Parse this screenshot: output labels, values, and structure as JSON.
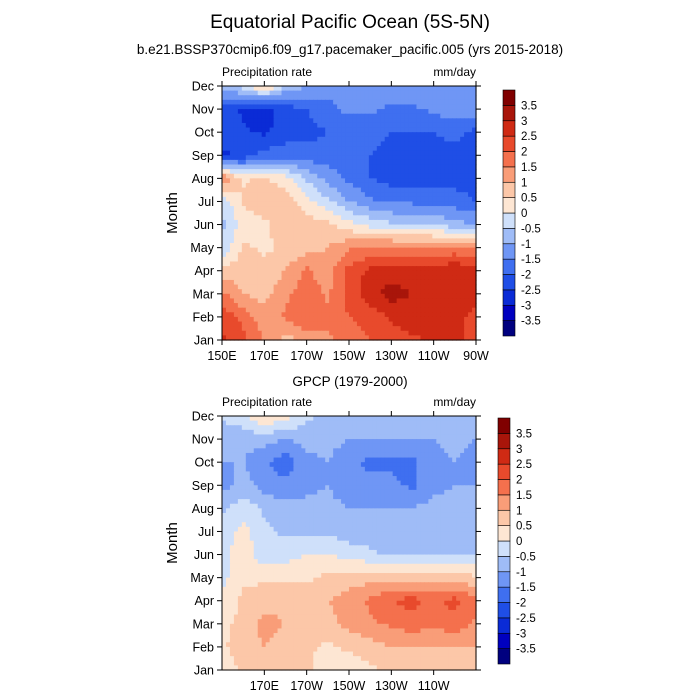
{
  "title": "Equatorial Pacific Ocean (5S-5N)",
  "subtitle": "b.e21.BSSP370cmip6.f09_g17.pacemaker_pacific.005 (yrs 2015-2018)",
  "chart_data": [
    {
      "type": "heatmap",
      "title": "",
      "left_label": "Precipitation rate",
      "right_label": "mm/day",
      "xlabel": "",
      "ylabel": "Month",
      "x_ticks": [
        "150E",
        "170E",
        "170W",
        "150W",
        "130W",
        "110W",
        "90W"
      ],
      "x_ticks_lon": [
        150,
        170,
        190,
        210,
        230,
        250,
        270
      ],
      "y_ticks": [
        "Jan",
        "Feb",
        "Mar",
        "Apr",
        "May",
        "Jun",
        "Jul",
        "Aug",
        "Sep",
        "Oct",
        "Nov",
        "Dec"
      ],
      "xlim": [
        150,
        270
      ],
      "ylim": [
        1,
        12
      ],
      "colorbar_labels": [
        "-3.5",
        "-3",
        "-2.5",
        "-2",
        "-1.5",
        "-1",
        "-0.5",
        "0",
        "0.5",
        "1",
        "1.5",
        "2",
        "2.5",
        "3",
        "3.5"
      ],
      "anomaly_grid": {
        "lon": [
          150,
          160,
          170,
          180,
          190,
          200,
          210,
          220,
          230,
          240,
          250,
          260,
          270
        ],
        "rows": [
          {
            "month": "Jan",
            "values": [
              2.6,
              2.2,
              1.4,
              0.8,
              1.2,
              1.4,
              1.8,
              2.0,
              2.2,
              2.4,
              2.6,
              2.6,
              2.4
            ]
          },
          {
            "month": "Feb",
            "values": [
              2.4,
              1.8,
              1.2,
              1.6,
              2.0,
              1.6,
              2.0,
              2.2,
              2.6,
              2.8,
              2.6,
              2.6,
              2.4
            ]
          },
          {
            "month": "Mar",
            "values": [
              1.6,
              1.0,
              0.8,
              1.4,
              1.8,
              1.4,
              2.2,
              2.8,
              3.2,
              3.0,
              2.8,
              2.8,
              2.6
            ]
          },
          {
            "month": "Apr",
            "values": [
              0.6,
              0.8,
              0.6,
              1.0,
              1.6,
              1.2,
              2.2,
              2.6,
              2.8,
              2.6,
              2.6,
              3.0,
              2.6
            ]
          },
          {
            "month": "May",
            "values": [
              -0.4,
              0.6,
              0.4,
              0.6,
              0.8,
              1.0,
              1.4,
              1.6,
              1.6,
              1.6,
              1.6,
              1.6,
              1.4
            ]
          },
          {
            "month": "Jun",
            "values": [
              -0.6,
              0.2,
              0.4,
              0.8,
              0.8,
              0.6,
              0.2,
              -0.2,
              -0.4,
              -0.6,
              -0.6,
              -0.8,
              -1.0
            ]
          },
          {
            "month": "Jul",
            "values": [
              -0.4,
              0.6,
              0.8,
              0.8,
              0.2,
              -0.4,
              -1.0,
              -1.4,
              -1.6,
              -1.6,
              -1.6,
              -1.8,
              -2.0
            ]
          },
          {
            "month": "Aug",
            "values": [
              1.6,
              0.4,
              0.6,
              0.2,
              -0.6,
              -1.2,
              -1.6,
              -2.0,
              -2.2,
              -2.4,
              -2.2,
              -2.2,
              -2.2
            ]
          },
          {
            "month": "Sep",
            "values": [
              -2.6,
              -2.4,
              -1.8,
              -1.8,
              -1.8,
              -1.8,
              -1.8,
              -2.0,
              -2.2,
              -2.2,
              -2.2,
              -2.2,
              -2.4
            ]
          },
          {
            "month": "Oct",
            "values": [
              -2.2,
              -2.4,
              -2.6,
              -2.2,
              -2.2,
              -2.0,
              -1.8,
              -1.8,
              -2.0,
              -2.0,
              -2.0,
              -1.8,
              -2.2
            ]
          },
          {
            "month": "Nov",
            "values": [
              -2.2,
              -2.6,
              -2.8,
              -2.2,
              -2.0,
              -1.6,
              -1.4,
              -1.4,
              -1.6,
              -1.6,
              -1.4,
              -1.2,
              -1.2
            ]
          },
          {
            "month": "Dec",
            "values": [
              -0.8,
              -0.2,
              0.8,
              -0.6,
              -1.0,
              -1.4,
              -1.2,
              -1.0,
              -1.0,
              -1.0,
              -1.2,
              -1.0,
              -1.0
            ]
          }
        ]
      }
    },
    {
      "type": "heatmap",
      "title": "GPCP (1979-2000)",
      "left_label": "Precipitation rate",
      "right_label": "mm/day",
      "xlabel": "",
      "ylabel": "Month",
      "x_ticks": [
        "170E",
        "170W",
        "150W",
        "130W",
        "110W"
      ],
      "x_ticks_lon": [
        170,
        190,
        210,
        230,
        250
      ],
      "y_ticks": [
        "Jan",
        "Feb",
        "Mar",
        "Apr",
        "May",
        "Jun",
        "Jul",
        "Aug",
        "Sep",
        "Oct",
        "Nov",
        "Dec"
      ],
      "xlim": [
        150,
        270
      ],
      "ylim": [
        1,
        12
      ],
      "colorbar_labels": [
        "-3.5",
        "-3",
        "-2.5",
        "-2",
        "-1.5",
        "-1",
        "-0.5",
        "0",
        "0.5",
        "1",
        "1.5",
        "2",
        "2.5",
        "3",
        "3.5"
      ],
      "anomaly_grid": {
        "lon": [
          150,
          160,
          170,
          180,
          190,
          200,
          210,
          220,
          230,
          240,
          250,
          260,
          270
        ],
        "rows": [
          {
            "month": "Jan",
            "values": [
              0.2,
              0.6,
              0.8,
              0.8,
              0.6,
              0.2,
              0.2,
              0.4,
              0.6,
              0.6,
              0.6,
              0.6,
              0.6
            ]
          },
          {
            "month": "Feb",
            "values": [
              0.4,
              0.8,
              1.0,
              0.8,
              0.6,
              0.4,
              0.6,
              0.8,
              1.0,
              1.0,
              1.0,
              1.0,
              1.0
            ]
          },
          {
            "month": "Mar",
            "values": [
              0.4,
              0.6,
              1.2,
              1.0,
              0.8,
              0.8,
              1.2,
              1.4,
              1.6,
              1.8,
              1.6,
              1.8,
              1.4
            ]
          },
          {
            "month": "Apr",
            "values": [
              0.2,
              0.6,
              0.8,
              0.8,
              0.8,
              1.0,
              1.2,
              1.6,
              2.0,
              2.2,
              1.8,
              2.2,
              1.6
            ]
          },
          {
            "month": "May",
            "values": [
              -0.2,
              0.4,
              0.4,
              0.4,
              0.4,
              0.6,
              0.8,
              0.8,
              0.8,
              0.8,
              0.8,
              0.8,
              0.6
            ]
          },
          {
            "month": "Jun",
            "values": [
              -0.2,
              0.4,
              -0.4,
              -0.2,
              0.0,
              0.0,
              -0.2,
              -0.4,
              -0.6,
              -0.6,
              -0.6,
              -0.6,
              -0.6
            ]
          },
          {
            "month": "Jul",
            "values": [
              -0.4,
              0.2,
              -0.4,
              -0.6,
              -0.6,
              -0.6,
              -0.8,
              -0.8,
              -0.8,
              -0.8,
              -0.8,
              -0.6,
              -0.6
            ]
          },
          {
            "month": "Aug",
            "values": [
              -0.6,
              -0.2,
              -0.6,
              -0.8,
              -0.8,
              -0.8,
              -1.0,
              -1.0,
              -1.0,
              -1.0,
              -0.8,
              -0.8,
              -0.6
            ]
          },
          {
            "month": "Sep",
            "values": [
              -1.2,
              -0.8,
              -1.2,
              -1.4,
              -1.2,
              -1.0,
              -1.4,
              -1.4,
              -1.4,
              -1.6,
              -1.2,
              -1.0,
              -1.0
            ]
          },
          {
            "month": "Oct",
            "values": [
              -1.0,
              -1.0,
              -1.4,
              -1.8,
              -1.2,
              -1.0,
              -1.4,
              -1.6,
              -1.6,
              -1.6,
              -1.2,
              -1.0,
              -1.2
            ]
          },
          {
            "month": "Nov",
            "values": [
              -0.8,
              -0.8,
              -0.8,
              -1.0,
              -0.8,
              -0.8,
              -1.0,
              -1.0,
              -1.0,
              -1.0,
              -1.0,
              -0.8,
              -1.0
            ]
          },
          {
            "month": "Dec",
            "values": [
              -0.4,
              -0.2,
              0.6,
              0.2,
              -0.4,
              -0.6,
              -0.6,
              -0.8,
              -0.6,
              -0.6,
              -0.6,
              -0.6,
              -0.6
            ]
          }
        ]
      }
    }
  ],
  "colors": {
    "levels": [
      "#00007f",
      "#0000bf",
      "#0a2bd6",
      "#1f4ee6",
      "#3f6ff0",
      "#6f96f5",
      "#9fbcf7",
      "#cfe0fa",
      "#fde6d3",
      "#fcc7a8",
      "#f99d78",
      "#f4704d",
      "#e84a2c",
      "#cf2a14",
      "#a8150a",
      "#800000"
    ]
  }
}
